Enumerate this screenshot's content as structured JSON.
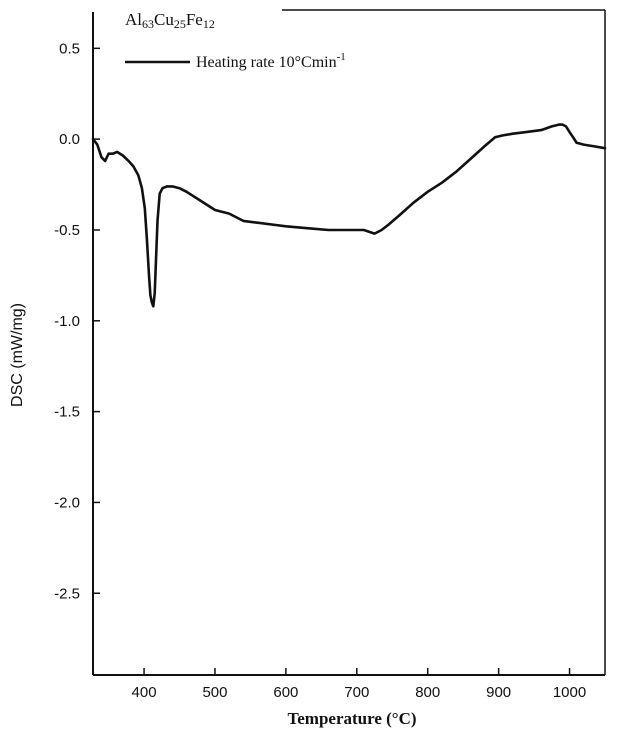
{
  "chart_data": {
    "type": "line",
    "title": {
      "base1": "Al",
      "sub1": "63",
      "base2": "Cu",
      "sub2": "25",
      "base3": "Fe",
      "sub3": "12"
    },
    "xlabel": "Temperature (°C)",
    "ylabel": "DSC (mW/mg)",
    "xlim": [
      328,
      1050
    ],
    "ylim": [
      -2.95,
      0.7
    ],
    "x_ticks": [
      400,
      500,
      600,
      700,
      800,
      900,
      1000
    ],
    "x_tick_labels": [
      "400",
      "500",
      "600",
      "700",
      "800",
      "900",
      "1000"
    ],
    "y_ticks": [
      0.5,
      0.0,
      -0.5,
      -1.0,
      -1.5,
      -2.0,
      -2.5
    ],
    "y_tick_labels": [
      "0.5",
      "0.0",
      "-0.5",
      "-1.0",
      "-1.5",
      "-2.0",
      "-2.5"
    ],
    "grid": false,
    "legend_position": "top-left",
    "line_color": "#111111",
    "series": [
      {
        "legend": {
          "text": "Heating rate 10°Cmin",
          "sup": "-1"
        },
        "x": [
          328,
          334,
          340,
          345,
          350,
          356,
          362,
          370,
          378,
          385,
          392,
          397,
          401,
          404,
          407,
          409,
          411,
          413,
          415,
          417,
          419,
          422,
          426,
          432,
          440,
          450,
          460,
          480,
          500,
          520,
          540,
          560,
          580,
          600,
          630,
          660,
          690,
          710,
          725,
          735,
          745,
          760,
          780,
          800,
          820,
          840,
          860,
          880,
          895,
          905,
          920,
          940,
          960,
          975,
          985,
          990,
          995,
          1000,
          1005,
          1010,
          1020,
          1035,
          1050
        ],
        "y": [
          0.0,
          -0.03,
          -0.1,
          -0.12,
          -0.08,
          -0.08,
          -0.07,
          -0.09,
          -0.12,
          -0.15,
          -0.2,
          -0.27,
          -0.38,
          -0.55,
          -0.75,
          -0.86,
          -0.9,
          -0.92,
          -0.85,
          -0.65,
          -0.45,
          -0.3,
          -0.27,
          -0.26,
          -0.26,
          -0.27,
          -0.29,
          -0.34,
          -0.39,
          -0.41,
          -0.45,
          -0.46,
          -0.47,
          -0.48,
          -0.49,
          -0.5,
          -0.5,
          -0.5,
          -0.52,
          -0.5,
          -0.47,
          -0.42,
          -0.35,
          -0.29,
          -0.24,
          -0.18,
          -0.11,
          -0.04,
          0.01,
          0.02,
          0.03,
          0.04,
          0.05,
          0.07,
          0.08,
          0.08,
          0.07,
          0.04,
          0.01,
          -0.02,
          -0.03,
          -0.04,
          -0.05
        ]
      }
    ]
  }
}
